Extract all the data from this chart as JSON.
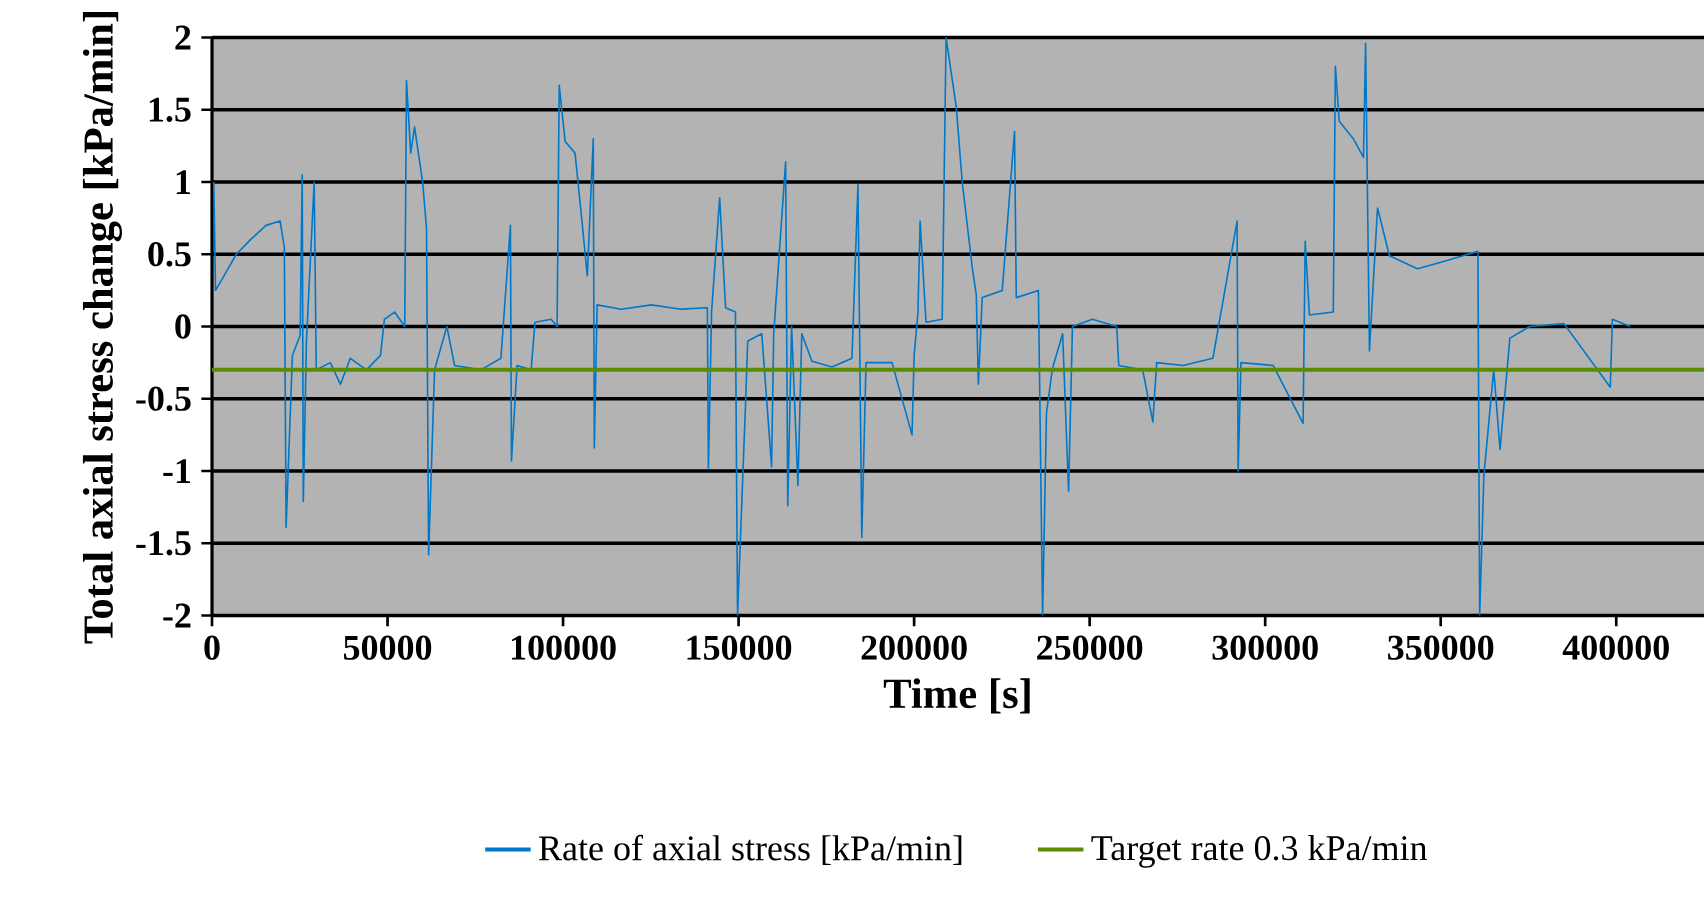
{
  "chart_data": {
    "type": "line",
    "xlabel": "Time [s]",
    "ylabel": "Total axial stress change  [kPa/min]",
    "xlim": [
      0,
      425000
    ],
    "xticks": [
      0,
      50000,
      100000,
      150000,
      200000,
      250000,
      300000,
      350000,
      400000
    ],
    "ylim": [
      -2,
      2
    ],
    "yticks": [
      -2,
      -1.5,
      -1,
      -0.5,
      0,
      0.5,
      1,
      1.5,
      2
    ],
    "grid": "y",
    "legend": "bottom",
    "marker": "none",
    "line_style": "solid",
    "series": [
      {
        "name": "Rate of axial stress [kPa/min]",
        "color": "#0077c8",
        "x": [
          500,
          1000,
          3400,
          6900,
          10900,
          15400,
          19400,
          20600,
          21100,
          22900,
          25100,
          25700,
          26000,
          26900,
          29100,
          29700,
          33700,
          36600,
          39400,
          44000,
          48000,
          49100,
          52000,
          54900,
          55400,
          56600,
          57700,
          60000,
          61100,
          61700,
          63400,
          66900,
          69100,
          76600,
          82300,
          85000,
          85300,
          86900,
          90900,
          92000,
          96600,
          98300,
          98900,
          100600,
          103400,
          105100,
          106900,
          108600,
          108900,
          109700,
          116600,
          125100,
          133700,
          141100,
          141400,
          142300,
          144600,
          146300,
          149100,
          149700,
          152000,
          152600,
          156600,
          159400,
          160000,
          163400,
          164000,
          165100,
          166900,
          168000,
          170900,
          176600,
          182300,
          184000,
          185100,
          186300,
          193700,
          199400,
          200000,
          201100,
          201700,
          203400,
          208000,
          209100,
          212000,
          213700,
          216600,
          217700,
          218300,
          219400,
          225100,
          228600,
          229100,
          235400,
          236600,
          237700,
          239400,
          242300,
          244000,
          245100,
          250800,
          257700,
          258300,
          265100,
          268000,
          269100,
          276600,
          285100,
          292000,
          292300,
          293100,
          302300,
          310800,
          311400,
          312600,
          319400,
          320000,
          321100,
          325100,
          328000,
          328600,
          329700,
          332000,
          335400,
          343400,
          350800,
          360600,
          361100,
          362300,
          365100,
          366900,
          369700,
          375400,
          385100,
          398300,
          398900,
          404000
        ],
        "values": [
          1.0,
          0.25,
          0.35,
          0.5,
          0.6,
          0.7,
          0.73,
          0.55,
          -1.39,
          -0.2,
          -0.06,
          1.05,
          -1.21,
          -0.1,
          1.0,
          -0.3,
          -0.25,
          -0.4,
          -0.22,
          -0.3,
          -0.2,
          0.05,
          0.1,
          0.0,
          1.7,
          1.2,
          1.38,
          1.0,
          0.68,
          -1.58,
          -0.3,
          0.0,
          -0.27,
          -0.3,
          -0.22,
          0.7,
          -0.93,
          -0.27,
          -0.3,
          0.03,
          0.05,
          0.0,
          1.67,
          1.28,
          1.2,
          0.8,
          0.35,
          1.3,
          -0.84,
          0.15,
          0.12,
          0.15,
          0.12,
          0.13,
          -0.98,
          0.1,
          0.89,
          0.13,
          0.1,
          -2.0,
          -0.52,
          -0.1,
          -0.05,
          -0.97,
          -0.05,
          1.14,
          -1.24,
          0.0,
          -1.1,
          -0.05,
          -0.24,
          -0.28,
          -0.22,
          0.98,
          -1.46,
          -0.25,
          -0.25,
          -0.75,
          -0.2,
          0.1,
          0.73,
          0.03,
          0.05,
          2.0,
          1.52,
          1.0,
          0.4,
          0.22,
          -0.4,
          0.2,
          0.25,
          1.35,
          0.2,
          0.25,
          -2.0,
          -0.6,
          -0.29,
          -0.05,
          -1.14,
          0.0,
          0.05,
          0.0,
          -0.27,
          -0.3,
          -0.66,
          -0.25,
          -0.27,
          -0.22,
          0.73,
          -1.0,
          -0.25,
          -0.27,
          -0.67,
          0.59,
          0.08,
          0.1,
          1.8,
          1.42,
          1.3,
          1.17,
          1.96,
          -0.17,
          0.82,
          0.49,
          0.4,
          0.45,
          0.52,
          -2.0,
          -1.03,
          -0.3,
          -0.85,
          -0.08,
          0.0,
          0.02,
          -0.42,
          0.05,
          0.0
        ]
      },
      {
        "name": "Target rate 0.3 kPa/min",
        "color": "#5b8c00",
        "x": [
          0,
          425000
        ],
        "values": [
          -0.3,
          -0.3
        ]
      }
    ]
  }
}
